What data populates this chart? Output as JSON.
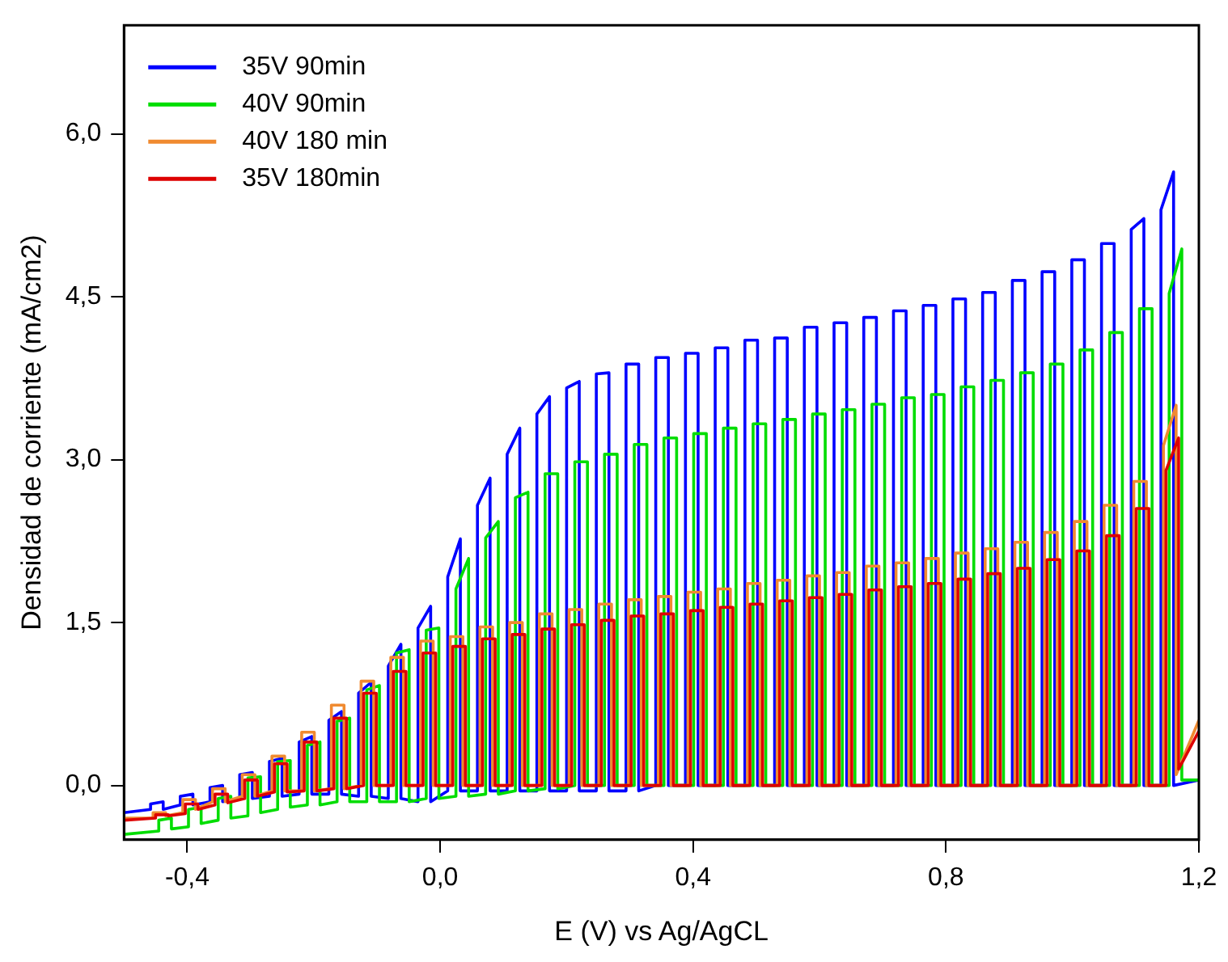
{
  "chart_data": {
    "type": "line",
    "xlabel": "E (V) vs Ag/AgCL",
    "ylabel": "Densidad de corriente (mA/cm2)",
    "x": [
      -0.5,
      -0.458,
      -0.458,
      -0.438,
      -0.438,
      -0.411,
      -0.411,
      -0.391,
      -0.391,
      -0.364,
      -0.364,
      -0.344,
      -0.344,
      -0.317,
      -0.317,
      -0.297,
      -0.297,
      -0.27,
      -0.27,
      -0.25,
      -0.25,
      -0.223,
      -0.223,
      -0.203,
      -0.203,
      -0.176,
      -0.176,
      -0.156,
      -0.156,
      -0.129,
      -0.129,
      -0.109,
      -0.109,
      -0.082,
      -0.082,
      -0.062,
      -0.062,
      -0.035,
      -0.035,
      -0.015,
      -0.015,
      0.012,
      0.012,
      0.032,
      0.032,
      0.059,
      0.059,
      0.079,
      0.079,
      0.106,
      0.106,
      0.126,
      0.126,
      0.153,
      0.153,
      0.173,
      0.173,
      0.2,
      0.2,
      0.22,
      0.22,
      0.247,
      0.247,
      0.267,
      0.267,
      0.294,
      0.294,
      0.314,
      0.314,
      0.341,
      0.341,
      0.361,
      0.361,
      0.388,
      0.388,
      0.408,
      0.408,
      0.435,
      0.435,
      0.455,
      0.455,
      0.482,
      0.482,
      0.502,
      0.502,
      0.529,
      0.529,
      0.549,
      0.549,
      0.576,
      0.576,
      0.596,
      0.596,
      0.623,
      0.623,
      0.643,
      0.643,
      0.67,
      0.67,
      0.69,
      0.69,
      0.717,
      0.717,
      0.737,
      0.737,
      0.764,
      0.764,
      0.784,
      0.784,
      0.811,
      0.811,
      0.831,
      0.831,
      0.858,
      0.858,
      0.878,
      0.878,
      0.905,
      0.905,
      0.925,
      0.925,
      0.952,
      0.952,
      0.972,
      0.972,
      0.999,
      0.999,
      1.019,
      1.019,
      1.046,
      1.046,
      1.066,
      1.066,
      1.093,
      1.093,
      1.113,
      1.113,
      1.14,
      1.14,
      1.16,
      1.16,
      1.2
    ],
    "series": [
      {
        "name": "35V 90min",
        "color": "#0000ff",
        "values": [
          -0.25,
          -0.22,
          -0.17,
          -0.15,
          -0.22,
          -0.18,
          -0.1,
          -0.08,
          -0.18,
          -0.15,
          -0.02,
          0,
          -0.15,
          -0.12,
          0.1,
          0.12,
          -0.12,
          -0.1,
          0.22,
          0.25,
          -0.1,
          -0.08,
          0.4,
          0.45,
          -0.08,
          -0.08,
          0.6,
          0.68,
          -0.08,
          -0.1,
          0.85,
          0.95,
          -0.1,
          -0.12,
          1.1,
          1.3,
          -0.12,
          -0.15,
          1.45,
          1.65,
          -0.15,
          -0.05,
          1.92,
          2.27,
          -0.05,
          -0.05,
          2.58,
          2.83,
          -0.05,
          -0.05,
          3.05,
          3.29,
          -0.05,
          -0.05,
          3.42,
          3.58,
          -0.05,
          -0.05,
          3.66,
          3.72,
          -0.05,
          -0.05,
          3.79,
          3.8,
          -0.05,
          -0.05,
          3.88,
          3.88,
          -0.05,
          0,
          3.94,
          3.94,
          0,
          0,
          3.98,
          3.98,
          0,
          0,
          4.03,
          4.03,
          0,
          0,
          4.1,
          4.1,
          0,
          0,
          4.12,
          4.12,
          0,
          0,
          4.22,
          4.22,
          0,
          0,
          4.26,
          4.26,
          0,
          0,
          4.31,
          4.31,
          0,
          0,
          4.37,
          4.37,
          0,
          0,
          4.42,
          4.42,
          0,
          0,
          4.48,
          4.48,
          0,
          0,
          4.54,
          4.54,
          0,
          0,
          4.65,
          4.65,
          0,
          0,
          4.73,
          4.73,
          0,
          0,
          4.84,
          4.84,
          0,
          0,
          4.99,
          4.99,
          0,
          0,
          5.12,
          5.22,
          0,
          0,
          5.3,
          5.65,
          0,
          0.05
        ]
      },
      {
        "name": "40V 90min",
        "color": "#00dd00",
        "x": [
          -0.5,
          -0.445,
          -0.445,
          -0.425,
          -0.425,
          -0.398,
          -0.398,
          -0.378,
          -0.378,
          -0.351,
          -0.351,
          -0.331,
          -0.331,
          -0.304,
          -0.304,
          -0.284,
          -0.284,
          -0.257,
          -0.257,
          -0.237,
          -0.237,
          -0.21,
          -0.21,
          -0.19,
          -0.19,
          -0.163,
          -0.163,
          -0.143,
          -0.143,
          -0.116,
          -0.116,
          -0.096,
          -0.096,
          -0.069,
          -0.069,
          -0.049,
          -0.049,
          -0.022,
          -0.022,
          -0.002,
          -0.002,
          0.025,
          0.025,
          0.045,
          0.045,
          0.072,
          0.072,
          0.092,
          0.092,
          0.119,
          0.119,
          0.139,
          0.139,
          0.166,
          0.166,
          0.186,
          0.186,
          0.213,
          0.213,
          0.233,
          0.233,
          0.26,
          0.26,
          0.28,
          0.28,
          0.307,
          0.307,
          0.327,
          0.327,
          0.354,
          0.354,
          0.374,
          0.374,
          0.401,
          0.401,
          0.421,
          0.421,
          0.448,
          0.448,
          0.468,
          0.468,
          0.495,
          0.495,
          0.515,
          0.515,
          0.542,
          0.542,
          0.562,
          0.562,
          0.589,
          0.589,
          0.609,
          0.609,
          0.636,
          0.636,
          0.656,
          0.656,
          0.683,
          0.683,
          0.703,
          0.703,
          0.73,
          0.73,
          0.75,
          0.75,
          0.777,
          0.777,
          0.797,
          0.797,
          0.824,
          0.824,
          0.844,
          0.844,
          0.871,
          0.871,
          0.891,
          0.891,
          0.918,
          0.918,
          0.938,
          0.938,
          0.965,
          0.965,
          0.985,
          0.985,
          1.012,
          1.012,
          1.032,
          1.032,
          1.059,
          1.059,
          1.079,
          1.079,
          1.106,
          1.106,
          1.126,
          1.126,
          1.153,
          1.153,
          1.173,
          1.173,
          1.2
        ],
        "values": [
          -0.45,
          -0.42,
          -0.32,
          -0.3,
          -0.4,
          -0.38,
          -0.22,
          -0.2,
          -0.35,
          -0.32,
          -0.12,
          -0.1,
          -0.3,
          -0.28,
          0.07,
          0.08,
          -0.25,
          -0.22,
          0.22,
          0.23,
          -0.2,
          -0.18,
          0.37,
          0.4,
          -0.18,
          -0.15,
          0.59,
          0.62,
          -0.15,
          -0.15,
          0.88,
          0.92,
          -0.15,
          -0.15,
          1.22,
          1.25,
          -0.15,
          -0.12,
          1.43,
          1.45,
          -0.12,
          -0.1,
          1.81,
          2.09,
          -0.1,
          -0.08,
          2.28,
          2.43,
          -0.08,
          -0.05,
          2.65,
          2.7,
          -0.05,
          -0.03,
          2.87,
          2.87,
          -0.03,
          0,
          2.98,
          2.98,
          0,
          0,
          3.05,
          3.05,
          0,
          0,
          3.14,
          3.14,
          0,
          0,
          3.2,
          3.2,
          0,
          0,
          3.24,
          3.24,
          0,
          0,
          3.29,
          3.29,
          0,
          0,
          3.33,
          3.33,
          0,
          0,
          3.37,
          3.37,
          0,
          0,
          3.42,
          3.42,
          0,
          0,
          3.46,
          3.46,
          0,
          0,
          3.51,
          3.51,
          0,
          0,
          3.57,
          3.57,
          0,
          0,
          3.6,
          3.6,
          0,
          0,
          3.67,
          3.67,
          0,
          0,
          3.73,
          3.73,
          0,
          0,
          3.8,
          3.8,
          0,
          0,
          3.88,
          3.88,
          0,
          0,
          4.01,
          4.01,
          0,
          0,
          4.17,
          4.17,
          0,
          0,
          4.39,
          4.39,
          0,
          0,
          4.53,
          4.94,
          0.05,
          0.05
        ]
      },
      {
        "name": "40V 180 min",
        "color": "#f08a30",
        "x": [
          -0.5,
          -0.454,
          -0.454,
          -0.434,
          -0.434,
          -0.407,
          -0.407,
          -0.387,
          -0.387,
          -0.36,
          -0.36,
          -0.34,
          -0.34,
          -0.313,
          -0.313,
          -0.293,
          -0.293,
          -0.266,
          -0.266,
          -0.246,
          -0.246,
          -0.219,
          -0.219,
          -0.199,
          -0.199,
          -0.172,
          -0.172,
          -0.152,
          -0.152,
          -0.125,
          -0.125,
          -0.105,
          -0.105,
          -0.078,
          -0.078,
          -0.058,
          -0.058,
          -0.031,
          -0.031,
          -0.011,
          -0.011,
          0.016,
          0.016,
          0.036,
          0.036,
          0.063,
          0.063,
          0.083,
          0.083,
          0.11,
          0.11,
          0.13,
          0.13,
          0.157,
          0.157,
          0.177,
          0.177,
          0.204,
          0.204,
          0.224,
          0.224,
          0.251,
          0.251,
          0.271,
          0.271,
          0.298,
          0.298,
          0.318,
          0.318,
          0.345,
          0.345,
          0.365,
          0.365,
          0.392,
          0.392,
          0.412,
          0.412,
          0.439,
          0.439,
          0.459,
          0.459,
          0.486,
          0.486,
          0.506,
          0.506,
          0.533,
          0.533,
          0.553,
          0.553,
          0.58,
          0.58,
          0.6,
          0.6,
          0.627,
          0.627,
          0.647,
          0.647,
          0.674,
          0.674,
          0.694,
          0.694,
          0.721,
          0.721,
          0.741,
          0.741,
          0.768,
          0.768,
          0.788,
          0.788,
          0.815,
          0.815,
          0.835,
          0.835,
          0.862,
          0.862,
          0.882,
          0.882,
          0.909,
          0.909,
          0.929,
          0.929,
          0.956,
          0.956,
          0.976,
          0.976,
          1.003,
          1.003,
          1.023,
          1.023,
          1.05,
          1.05,
          1.07,
          1.07,
          1.097,
          1.097,
          1.117,
          1.117,
          1.144,
          1.144,
          1.164,
          1.164,
          1.2
        ],
        "values": [
          -0.3,
          -0.3,
          -0.25,
          -0.25,
          -0.28,
          -0.25,
          -0.13,
          -0.13,
          -0.22,
          -0.15,
          -0.03,
          -0.03,
          -0.15,
          -0.1,
          0.1,
          0.1,
          -0.1,
          -0.05,
          0.27,
          0.27,
          -0.05,
          -0.05,
          0.49,
          0.49,
          -0.05,
          -0.03,
          0.74,
          0.74,
          -0.03,
          0,
          0.96,
          0.96,
          0,
          0,
          1.18,
          1.18,
          0,
          0,
          1.33,
          1.33,
          0,
          0,
          1.37,
          1.37,
          0,
          0,
          1.46,
          1.46,
          0,
          0,
          1.5,
          1.5,
          0,
          0,
          1.58,
          1.58,
          0,
          0,
          1.62,
          1.62,
          0,
          0,
          1.67,
          1.67,
          0,
          0,
          1.71,
          1.71,
          0,
          0,
          1.74,
          1.74,
          0,
          0,
          1.78,
          1.78,
          0,
          0,
          1.81,
          1.81,
          0,
          0,
          1.86,
          1.86,
          0,
          0,
          1.89,
          1.89,
          0,
          0,
          1.93,
          1.93,
          0,
          0,
          1.96,
          1.96,
          0,
          0,
          2.02,
          2.02,
          0,
          0,
          2.05,
          2.05,
          0,
          0,
          2.09,
          2.09,
          0,
          0,
          2.14,
          2.14,
          0,
          0,
          2.18,
          2.18,
          0,
          0,
          2.24,
          2.24,
          0,
          0,
          2.33,
          2.33,
          0,
          0,
          2.43,
          2.43,
          0,
          0,
          2.58,
          2.58,
          0,
          0,
          2.8,
          2.8,
          0,
          0,
          3.13,
          3.5,
          0.1,
          0.6
        ]
      },
      {
        "name": "35V 180min",
        "color": "#dd0000",
        "x": [
          -0.5,
          -0.45,
          -0.45,
          -0.43,
          -0.43,
          -0.403,
          -0.403,
          -0.383,
          -0.383,
          -0.356,
          -0.356,
          -0.336,
          -0.336,
          -0.309,
          -0.309,
          -0.289,
          -0.289,
          -0.262,
          -0.262,
          -0.242,
          -0.242,
          -0.215,
          -0.215,
          -0.195,
          -0.195,
          -0.168,
          -0.168,
          -0.148,
          -0.148,
          -0.121,
          -0.121,
          -0.101,
          -0.101,
          -0.074,
          -0.074,
          -0.054,
          -0.054,
          -0.027,
          -0.027,
          -0.007,
          -0.007,
          0.02,
          0.02,
          0.04,
          0.04,
          0.067,
          0.067,
          0.087,
          0.087,
          0.114,
          0.114,
          0.134,
          0.134,
          0.161,
          0.161,
          0.181,
          0.181,
          0.208,
          0.208,
          0.228,
          0.228,
          0.255,
          0.255,
          0.275,
          0.275,
          0.302,
          0.302,
          0.322,
          0.322,
          0.349,
          0.349,
          0.369,
          0.369,
          0.396,
          0.396,
          0.416,
          0.416,
          0.443,
          0.443,
          0.463,
          0.463,
          0.49,
          0.49,
          0.51,
          0.51,
          0.537,
          0.537,
          0.557,
          0.557,
          0.584,
          0.584,
          0.604,
          0.604,
          0.631,
          0.631,
          0.651,
          0.651,
          0.678,
          0.678,
          0.698,
          0.698,
          0.725,
          0.725,
          0.745,
          0.745,
          0.772,
          0.772,
          0.792,
          0.792,
          0.819,
          0.819,
          0.839,
          0.839,
          0.866,
          0.866,
          0.886,
          0.886,
          0.913,
          0.913,
          0.933,
          0.933,
          0.96,
          0.96,
          0.98,
          0.98,
          1.007,
          1.007,
          1.027,
          1.027,
          1.054,
          1.054,
          1.074,
          1.074,
          1.101,
          1.101,
          1.121,
          1.121,
          1.148,
          1.148,
          1.168,
          1.168,
          1.2
        ],
        "values": [
          -0.32,
          -0.3,
          -0.27,
          -0.27,
          -0.28,
          -0.26,
          -0.17,
          -0.17,
          -0.22,
          -0.18,
          -0.08,
          -0.08,
          -0.16,
          -0.12,
          0.05,
          0.05,
          -0.1,
          -0.06,
          0.2,
          0.2,
          -0.06,
          -0.05,
          0.4,
          0.4,
          -0.05,
          -0.03,
          0.62,
          0.62,
          -0.03,
          0,
          0.85,
          0.85,
          0,
          0,
          1.05,
          1.05,
          0,
          0,
          1.22,
          1.22,
          0,
          0,
          1.28,
          1.28,
          0,
          0,
          1.35,
          1.35,
          0,
          0,
          1.39,
          1.39,
          0,
          0,
          1.44,
          1.44,
          0,
          0,
          1.48,
          1.48,
          0,
          0,
          1.52,
          1.52,
          0,
          0,
          1.56,
          1.56,
          0,
          0,
          1.58,
          1.58,
          0,
          0,
          1.61,
          1.61,
          0,
          0,
          1.64,
          1.64,
          0,
          0,
          1.67,
          1.67,
          0,
          0,
          1.7,
          1.7,
          0,
          0,
          1.73,
          1.73,
          0,
          0,
          1.76,
          1.76,
          0,
          0,
          1.8,
          1.8,
          0,
          0,
          1.83,
          1.83,
          0,
          0,
          1.86,
          1.86,
          0,
          0,
          1.9,
          1.9,
          0,
          0,
          1.95,
          1.95,
          0,
          0,
          2,
          2,
          0,
          0,
          2.08,
          2.08,
          0,
          0,
          2.16,
          2.16,
          0,
          0,
          2.3,
          2.3,
          0,
          0,
          2.55,
          2.55,
          0,
          0,
          2.9,
          3.2,
          0.15,
          0.5
        ]
      }
    ],
    "xlim": [
      -0.5,
      1.2
    ],
    "xticks": [
      {
        "value": -0.4,
        "label": "-0,4"
      },
      {
        "value": 0,
        "label": "0,0"
      },
      {
        "value": 0.4,
        "label": "0,4"
      },
      {
        "value": 0.8,
        "label": "0,8"
      },
      {
        "value": 1.2,
        "label": "1,2"
      }
    ],
    "ylim": [
      -0.5,
      7
    ],
    "yticks": [
      {
        "value": 0,
        "label": "0,0"
      },
      {
        "value": 1.5,
        "label": "1,5"
      },
      {
        "value": 3,
        "label": "3,0"
      },
      {
        "value": 4.5,
        "label": "4,5"
      },
      {
        "value": 6,
        "label": "6,0"
      }
    ],
    "grid": false,
    "legend": "top left",
    "marker": "none",
    "line_style": "solid"
  }
}
